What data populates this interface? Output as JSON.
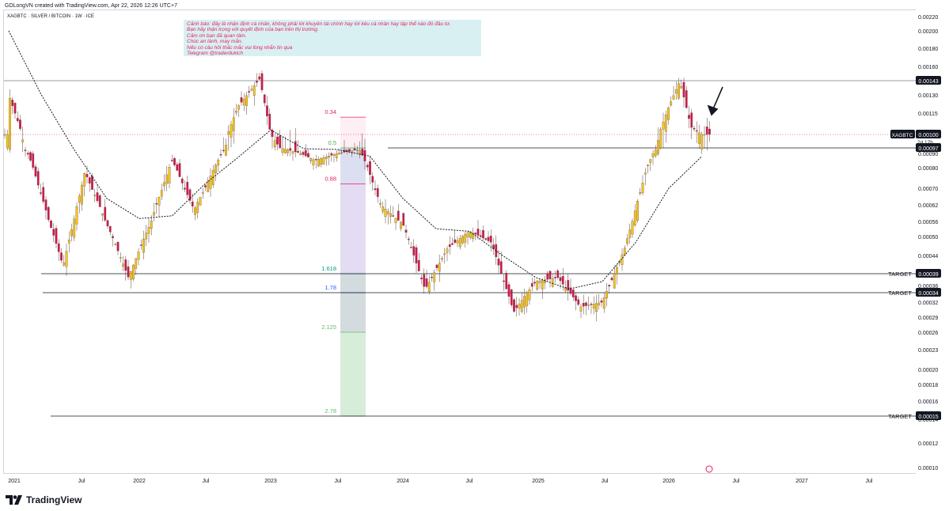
{
  "header": {
    "credit": "GDLongVN created with TradingView.com, Apr 22, 2026 12:26 UTC+7"
  },
  "symbol": {
    "title": "XAGBTC · SILVER / BITCOIN · 1W · ICE",
    "ticker": "XAGBTC"
  },
  "note": {
    "lines": [
      "Cảnh báo: đây là nhận định cá nhân, không phải lời khuyên tài chính hay lời kêu cá nhân hay tập thể nào đó đầu tư.",
      "Bạn hãy thận trọng với quyết định của bạn trên thị trường.",
      "Cảm ơn bạn đã quan tâm.",
      "Chúc an lành, may mắn.",
      "Nếu có câu hỏi thắc mắc vui lòng nhắn tin qua",
      "Telegram @traderdukich"
    ]
  },
  "brand": {
    "name": "TradingView"
  },
  "colors": {
    "up": "#f5c518",
    "down": "#d6154e",
    "fib_top": "#e91e63",
    "fib_05": "#4caf50",
    "fib_1618": "#089981",
    "fib_178": "#2962ff",
    "fib_2125": "#66bb6a",
    "fib_278": "#66bb6a"
  },
  "chart_data": {
    "type": "candlestick",
    "title": "XAGBTC · SILVER / BITCOIN · 1W · ICE",
    "y_axis": {
      "scale": "log",
      "ylim": [
        0.0001,
        0.00022
      ],
      "ticks": [
        "0.00220",
        "0.00200",
        "0.00180",
        "0.00160",
        "0.00130",
        "0.00115",
        "0.00090",
        "0.00080",
        "0.00070",
        "0.00062",
        "0.00056",
        "0.00050",
        "0.00044",
        "0.00036",
        "0.00032",
        "0.00029",
        "0.00026",
        "0.00023",
        "0.00020",
        "0.00018",
        "0.00016",
        "0.00014",
        "0.00012",
        "0.00010"
      ]
    },
    "x_axis": {
      "ticks": [
        "2021",
        "Jul",
        "2022",
        "Jul",
        "2023",
        "Jul",
        "2024",
        "Jul",
        "2025",
        "Jul",
        "2026",
        "Jul",
        "2027",
        "Jul"
      ]
    },
    "price_labels": [
      {
        "value": "0.00143",
        "role": "resistance"
      },
      {
        "value": "0.00100",
        "role": "last_price",
        "countdown": "2d 17h"
      },
      {
        "value": "0.00097",
        "role": "support"
      },
      {
        "value": "0.00039",
        "role": "target",
        "label": "TARGET"
      },
      {
        "value": "0.00034",
        "role": "target",
        "label": "TARGET"
      },
      {
        "value": "0.00015",
        "role": "target",
        "label": "TARGET"
      }
    ],
    "fib_levels": [
      {
        "label": "0.34",
        "value": 0.00112
      },
      {
        "label": "0.5",
        "value": 0.00097
      },
      {
        "label": "0.88",
        "value": 0.00072
      },
      {
        "label": "1.618",
        "value": 0.00039
      },
      {
        "label": "1.78",
        "value": 0.00034
      },
      {
        "label": "2.125",
        "value": 0.00026
      },
      {
        "label": "2.78",
        "value": 0.00015
      }
    ],
    "series": [
      {
        "name": "price",
        "points": [
          [
            "2021-01",
            0.0013
          ],
          [
            "2021-03",
            0.00085
          ],
          [
            "2021-05",
            0.00052
          ],
          [
            "2021-06",
            0.00041
          ],
          [
            "2021-08",
            0.00078
          ],
          [
            "2021-10",
            0.00055
          ],
          [
            "2021-12",
            0.00038
          ],
          [
            "2022-02",
            0.00055
          ],
          [
            "2022-04",
            0.00085
          ],
          [
            "2022-06",
            0.0006
          ],
          [
            "2022-08",
            0.00082
          ],
          [
            "2022-10",
            0.0012
          ],
          [
            "2022-12",
            0.00145
          ],
          [
            "2023-01",
            0.001
          ],
          [
            "2023-03",
            0.00093
          ],
          [
            "2023-05",
            0.00085
          ],
          [
            "2023-07",
            0.0009
          ],
          [
            "2023-09",
            0.00095
          ],
          [
            "2023-11",
            0.00062
          ],
          [
            "2024-01",
            0.00055
          ],
          [
            "2024-03",
            0.00035
          ],
          [
            "2024-05",
            0.00046
          ],
          [
            "2024-07",
            0.00052
          ],
          [
            "2024-09",
            0.00048
          ],
          [
            "2024-11",
            0.0003
          ],
          [
            "2025-01",
            0.00037
          ],
          [
            "2025-03",
            0.00038
          ],
          [
            "2025-05",
            0.00031
          ],
          [
            "2025-07",
            0.00032
          ],
          [
            "2025-09",
            0.00046
          ],
          [
            "2025-11",
            0.0008
          ],
          [
            "2026-01",
            0.0012
          ],
          [
            "2026-02",
            0.00143
          ],
          [
            "2026-03",
            0.00105
          ],
          [
            "2026-04",
            0.001
          ]
        ]
      },
      {
        "name": "MA",
        "points": [
          [
            "2021-01",
            0.002
          ],
          [
            "2021-04",
            0.0013
          ],
          [
            "2021-07",
            0.00095
          ],
          [
            "2021-10",
            0.00065
          ],
          [
            "2022-01",
            0.00057
          ],
          [
            "2022-04",
            0.00058
          ],
          [
            "2022-07",
            0.00072
          ],
          [
            "2022-10",
            0.00087
          ],
          [
            "2023-01",
            0.00103
          ],
          [
            "2023-04",
            0.00096
          ],
          [
            "2023-07",
            0.00095
          ],
          [
            "2023-10",
            0.00088
          ],
          [
            "2024-01",
            0.00065
          ],
          [
            "2024-04",
            0.00053
          ],
          [
            "2024-07",
            0.00052
          ],
          [
            "2024-10",
            0.00044
          ],
          [
            "2025-01",
            0.00038
          ],
          [
            "2025-04",
            0.00035
          ],
          [
            "2025-07",
            0.00037
          ],
          [
            "2025-10",
            0.00048
          ],
          [
            "2026-01",
            0.0007
          ],
          [
            "2026-04",
            0.00088
          ]
        ]
      }
    ]
  }
}
